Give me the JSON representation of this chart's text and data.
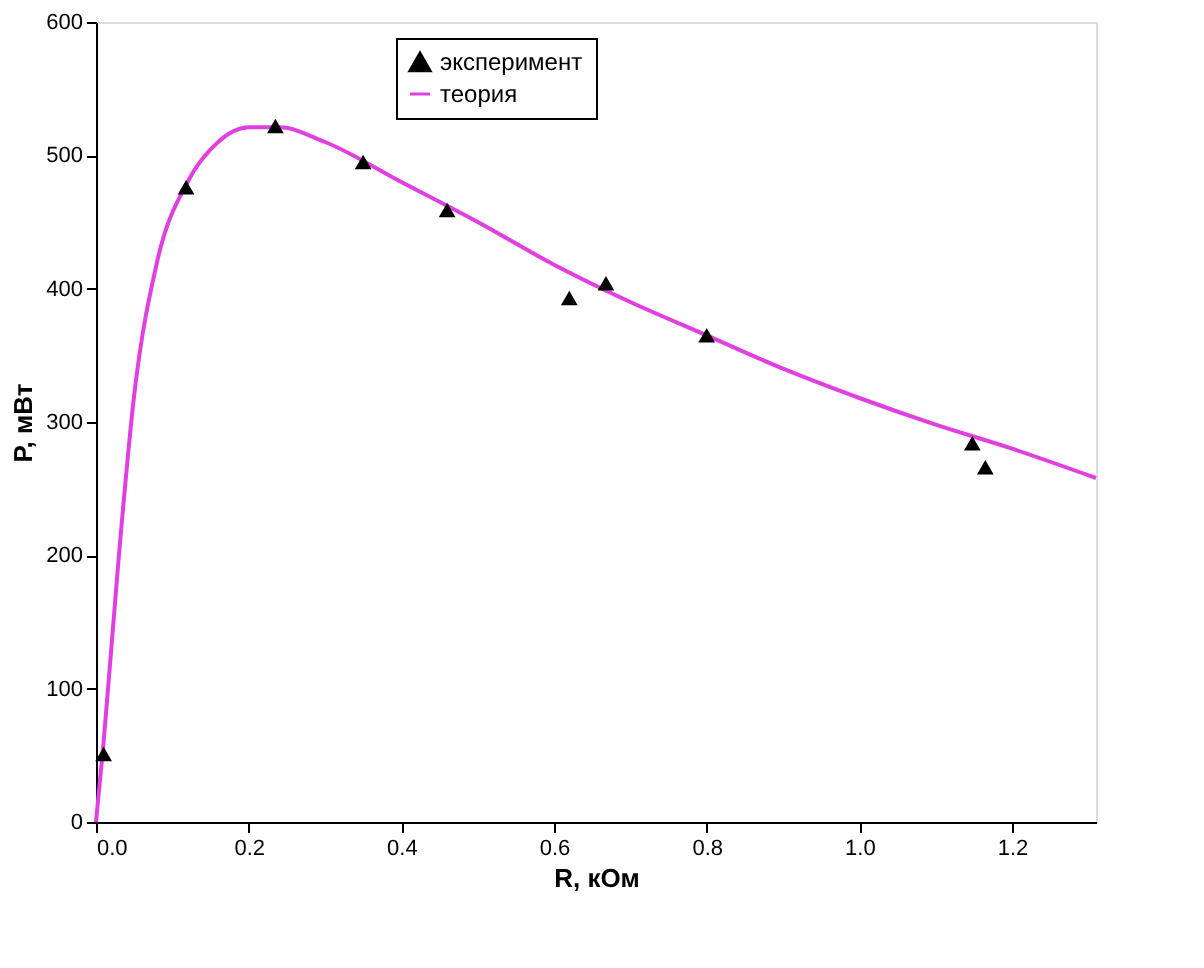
{
  "chart_data": {
    "type": "scatter",
    "xlabel": "R, кОм",
    "ylabel": "P, мВт",
    "xlim": [
      0,
      1.31
    ],
    "ylim": [
      0,
      600
    ],
    "xticks": [
      {
        "value": 0,
        "label": "0.0"
      },
      {
        "value": 0.2,
        "label": "0.2"
      },
      {
        "value": 0.4,
        "label": "0.4"
      },
      {
        "value": 0.6,
        "label": "0.6"
      },
      {
        "value": 0.8,
        "label": "0.8"
      },
      {
        "value": 1,
        "label": "1.0"
      },
      {
        "value": 1.2,
        "label": "1.2"
      }
    ],
    "yticks": [
      0,
      100,
      200,
      300,
      400,
      500,
      600
    ],
    "grid": false,
    "legend": "top",
    "series": [
      {
        "name": "эксперимент",
        "marker": "triangle",
        "color": "#000000",
        "x": [
          0.01,
          0.118,
          0.235,
          0.35,
          0.46,
          0.62,
          0.668,
          0.8,
          1.148,
          1.165
        ],
        "values": [
          51,
          476,
          522,
          495,
          459,
          393,
          404,
          365,
          284,
          266
        ]
      },
      {
        "name": "теория",
        "type": "line",
        "marker": "none",
        "line_style": "solid",
        "color": "#e040e0",
        "x": [
          0,
          0.01,
          0.03,
          0.05,
          0.08,
          0.12,
          0.16,
          0.2,
          0.24,
          0.3,
          0.4,
          0.5,
          0.6,
          0.7,
          0.8,
          0.9,
          1.0,
          1.1,
          1.2,
          1.31
        ],
        "values": [
          0,
          60,
          200,
          320,
          420,
          480,
          510,
          521,
          521,
          510,
          480,
          450,
          418,
          390,
          365,
          340,
          318,
          298,
          280,
          258
        ]
      }
    ]
  }
}
